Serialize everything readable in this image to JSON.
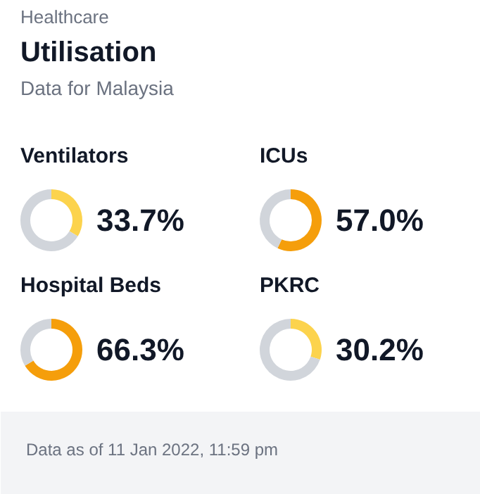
{
  "chart_data": [
    {
      "type": "other",
      "title": "Utilisation",
      "subtitle": "Data for Malaysia",
      "annotations": [
        "Healthcare"
      ]
    },
    {
      "type": "donut",
      "title": "Ventilators",
      "categories": [
        null,
        null
      ],
      "values": [
        33.7,
        66.3
      ],
      "colors": [
        "#fcd34d",
        "#d1d5db"
      ],
      "value_labels": [
        "33.7%",
        null
      ]
    },
    {
      "type": "donut",
      "title": "ICUs",
      "categories": [
        null,
        null
      ],
      "values": [
        57.0,
        43.0
      ],
      "colors": [
        "#f59e0b",
        "#d1d5db"
      ],
      "value_labels": [
        "57.0%",
        null
      ]
    },
    {
      "type": "donut",
      "title": "Hospital Beds",
      "categories": [
        null,
        null
      ],
      "values": [
        66.3,
        33.7
      ],
      "colors": [
        "#f59e0b",
        "#d1d5db"
      ],
      "value_labels": [
        "66.3%",
        null
      ]
    },
    {
      "type": "donut",
      "title": "PKRC",
      "categories": [
        null,
        null
      ],
      "values": [
        30.2,
        69.8
      ],
      "colors": [
        "#fcd34d",
        "#d1d5db"
      ],
      "value_labels": [
        "30.2%",
        null
      ]
    },
    {
      "type": "other",
      "annotations": [
        "Data as of 11 Jan 2022, 11:59 pm"
      ]
    }
  ]
}
